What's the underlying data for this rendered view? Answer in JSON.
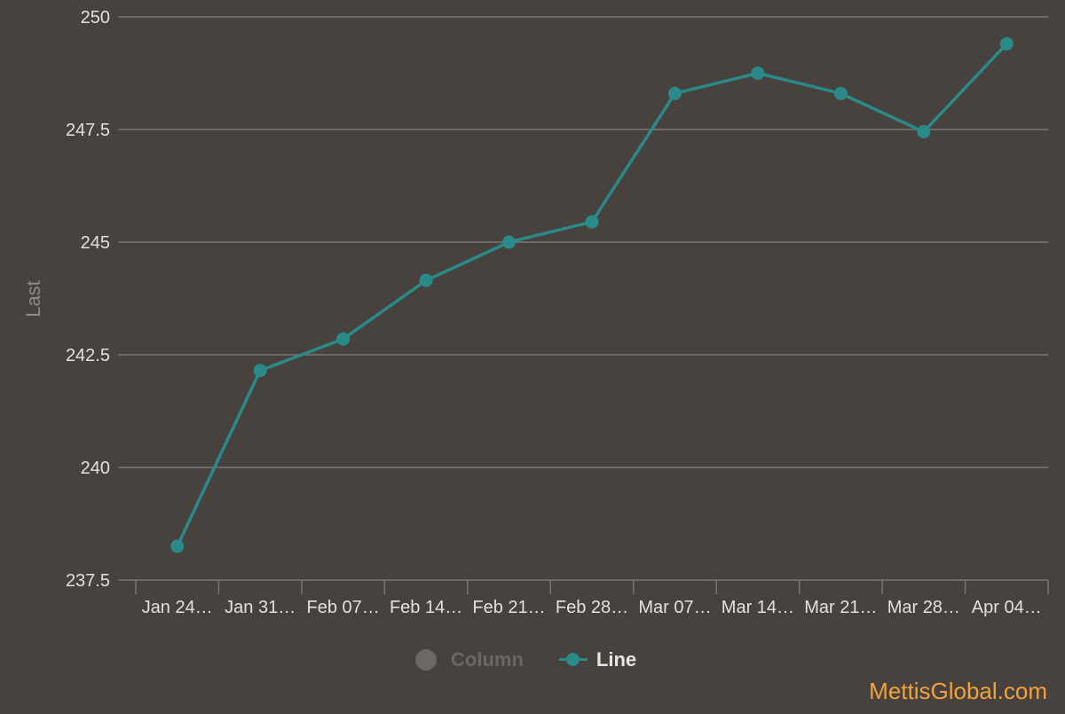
{
  "chart_data": {
    "type": "line",
    "ylabel": "Last",
    "ylim": [
      237.5,
      250
    ],
    "y_ticks": [
      "237.5",
      "240",
      "242.5",
      "245",
      "247.5",
      "250"
    ],
    "categories": [
      "Jan 24…",
      "Jan 31…",
      "Feb 07…",
      "Feb 14…",
      "Feb 21…",
      "Feb 28…",
      "Mar 07…",
      "Mar 14…",
      "Mar 21…",
      "Mar 28…",
      "Apr 04…"
    ],
    "series": [
      {
        "name": "Line",
        "values": [
          238.25,
          242.15,
          242.85,
          244.15,
          245.0,
          245.45,
          248.3,
          248.75,
          248.3,
          247.45,
          249.4
        ]
      }
    ],
    "grid": true,
    "legend_position": "bottom-center"
  },
  "legend": {
    "items": [
      {
        "label": "Column",
        "active": false
      },
      {
        "label": "Line",
        "active": true
      }
    ]
  },
  "credit": "MettisGlobal.com",
  "colors": {
    "background": "#47423e",
    "line": "#2a8a8a",
    "grid": "#7a7673",
    "text": "#e3e1de",
    "axis_title": "#8e8a87",
    "credit": "#f2a23c",
    "inactive": "#6b6865"
  }
}
